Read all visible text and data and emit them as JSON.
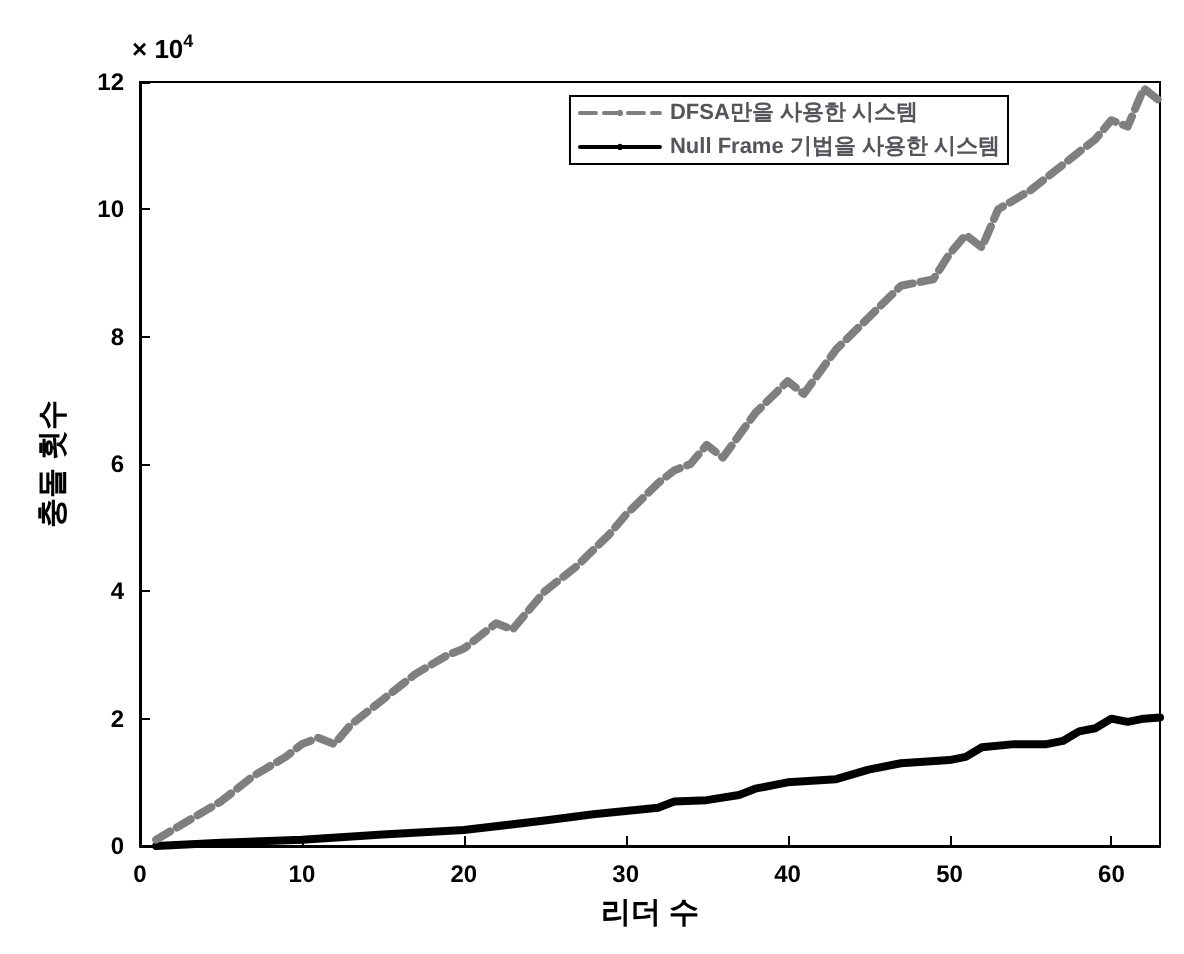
{
  "chart_data": {
    "type": "line",
    "xlabel": "리더 수",
    "ylabel": "충돌 횟수",
    "annotations": [
      "× 10$^{4}$"
    ],
    "xlim": [
      0,
      63
    ],
    "xticks": [
      0,
      10,
      20,
      30,
      40,
      50,
      60
    ],
    "ylim": [
      0,
      12
    ],
    "yticks": [
      0,
      2,
      4,
      6,
      8,
      10,
      12
    ],
    "grid": false,
    "legend": "top right",
    "marker": "none",
    "series": [
      {
        "name": "DFSA만을 사용한 시스템",
        "color": "#7f7f7f",
        "line_style": "dashed",
        "x": [
          1,
          3,
          5,
          7,
          9,
          10,
          11,
          12,
          13,
          15,
          17,
          19,
          20,
          22,
          23,
          25,
          27,
          29,
          30,
          32,
          33,
          34,
          35,
          36,
          38,
          40,
          41,
          43,
          45,
          47,
          49,
          50,
          51,
          52,
          53,
          55,
          57,
          59,
          60,
          61,
          62,
          63
        ],
        "values": [
          0.1,
          0.4,
          0.7,
          1.1,
          1.4,
          1.6,
          1.7,
          1.6,
          1.9,
          2.3,
          2.7,
          3.0,
          3.1,
          3.5,
          3.4,
          4.0,
          4.4,
          4.9,
          5.2,
          5.7,
          5.9,
          6.0,
          6.3,
          6.1,
          6.8,
          7.3,
          7.1,
          7.8,
          8.3,
          8.8,
          8.9,
          9.3,
          9.6,
          9.4,
          10.0,
          10.3,
          10.7,
          11.1,
          11.4,
          11.3,
          11.9,
          11.7
        ]
      },
      {
        "name": "Null Frame 기법을 사용한 시스템",
        "color": "#000000",
        "line_style": "solid",
        "x": [
          1,
          5,
          10,
          15,
          20,
          25,
          28,
          30,
          32,
          33,
          35,
          37,
          38,
          40,
          43,
          45,
          47,
          50,
          51,
          52,
          54,
          56,
          57,
          58,
          59,
          60,
          61,
          62,
          63
        ],
        "values": [
          0,
          0.05,
          0.1,
          0.18,
          0.25,
          0.4,
          0.5,
          0.55,
          0.6,
          0.7,
          0.72,
          0.8,
          0.9,
          1.0,
          1.05,
          1.2,
          1.3,
          1.35,
          1.4,
          1.55,
          1.6,
          1.6,
          1.65,
          1.8,
          1.85,
          2.0,
          1.95,
          2.0,
          2.02
        ]
      }
    ]
  }
}
